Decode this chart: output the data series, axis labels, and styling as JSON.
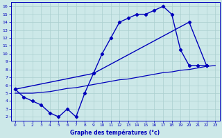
{
  "xlabel": "Graphe des températures (°c)",
  "xlim": [
    -0.5,
    23.5
  ],
  "ylim": [
    1.5,
    16.5
  ],
  "yticks": [
    2,
    3,
    4,
    5,
    6,
    7,
    8,
    9,
    10,
    11,
    12,
    13,
    14,
    15,
    16
  ],
  "xticks": [
    0,
    1,
    2,
    3,
    4,
    5,
    6,
    7,
    8,
    9,
    10,
    11,
    12,
    13,
    14,
    15,
    16,
    17,
    18,
    19,
    20,
    21,
    22,
    23
  ],
  "bg_color": "#cce8e8",
  "line_color": "#0000bb",
  "grid_color": "#aacfcf",
  "line1_x": [
    0,
    1,
    2,
    3,
    4,
    5,
    6,
    7,
    8,
    9,
    10,
    11,
    12,
    13,
    14,
    15,
    16,
    17,
    18,
    19,
    20,
    21,
    22
  ],
  "line1_y": [
    5.5,
    4.5,
    4.0,
    3.5,
    2.5,
    2.0,
    3.0,
    2.0,
    5.0,
    7.5,
    10.0,
    12.0,
    14.0,
    14.5,
    15.0,
    15.0,
    15.5,
    16.0,
    15.0,
    10.5,
    8.5,
    8.5,
    8.5
  ],
  "line2_x": [
    0,
    9,
    20,
    22
  ],
  "line2_y": [
    5.5,
    7.5,
    14.0,
    8.5
  ],
  "line3_x": [
    0,
    1,
    2,
    3,
    4,
    5,
    6,
    7,
    8,
    9,
    10,
    11,
    12,
    13,
    14,
    15,
    16,
    17,
    18,
    19,
    20,
    21,
    22,
    23
  ],
  "line3_y": [
    5.0,
    5.0,
    5.0,
    5.1,
    5.2,
    5.4,
    5.6,
    5.7,
    5.9,
    6.1,
    6.3,
    6.5,
    6.7,
    6.8,
    7.0,
    7.2,
    7.4,
    7.6,
    7.7,
    7.9,
    8.0,
    8.2,
    8.4,
    8.5
  ]
}
